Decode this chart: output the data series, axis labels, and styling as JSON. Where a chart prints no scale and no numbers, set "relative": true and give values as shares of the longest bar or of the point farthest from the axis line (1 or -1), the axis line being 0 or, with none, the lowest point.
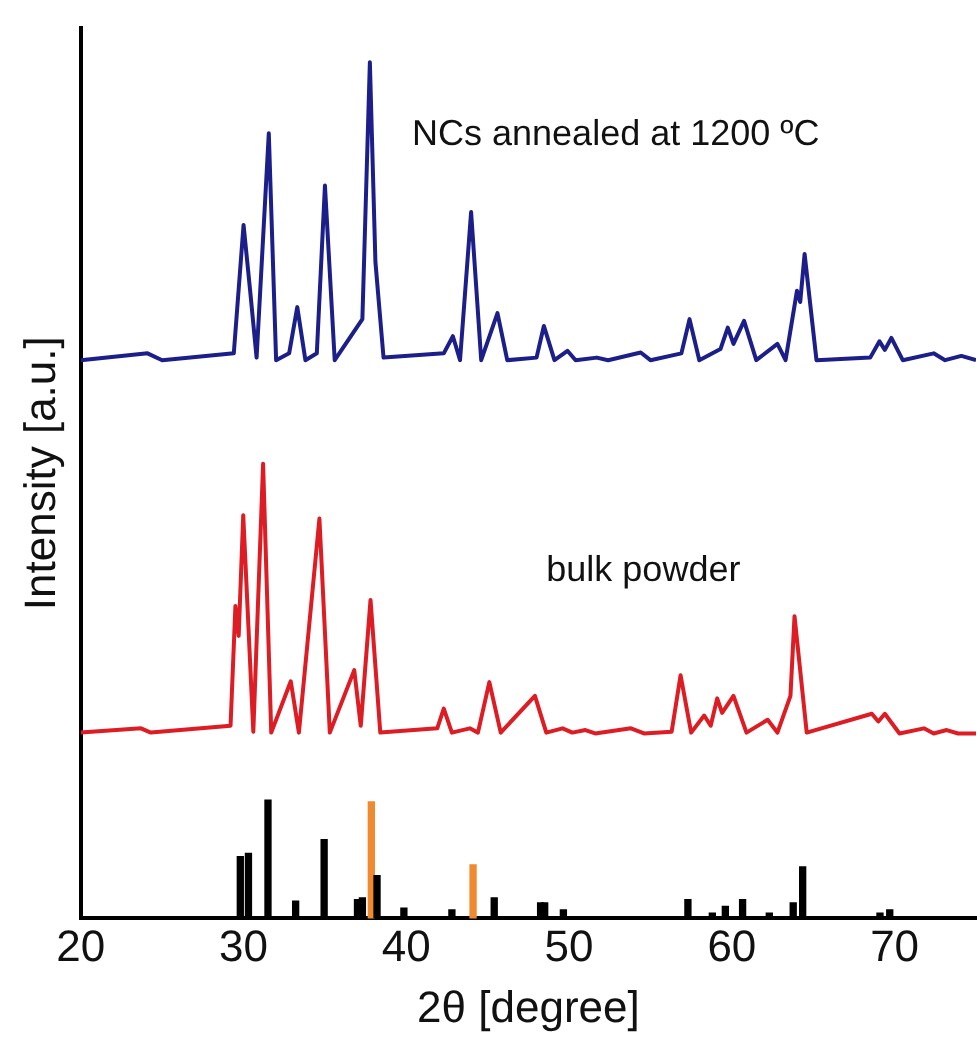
{
  "chart_data": {
    "type": "line",
    "xlabel": "2θ [degree]",
    "ylabel": "Intensity [a.u.]",
    "relative": true,
    "xlim": [
      20,
      75
    ],
    "xticks": [
      20,
      30,
      40,
      50,
      60,
      70
    ],
    "grid": false,
    "legend": false,
    "marker": "none",
    "annotations": [
      "NCs annealed at 1200 ºC",
      "bulk powder"
    ],
    "series": [
      {
        "color": "#1c1f8a",
        "x": [
          20,
          24.1,
          25,
          29.4,
          30,
          30.4,
          30.8,
          31.55,
          32.0,
          32.8,
          33.3,
          33.8,
          34.5,
          35.0,
          35.6,
          37.3,
          37.76,
          38.1,
          38.6,
          42.3,
          42.86,
          43.3,
          43.98,
          44.6,
          45.6,
          46.2,
          48.0,
          48.45,
          49.1,
          49.9,
          50.4,
          51.7,
          52.4,
          54.4,
          55,
          56.9,
          57.4,
          58,
          59.3,
          59.75,
          60.1,
          60.75,
          61.5,
          62.8,
          63.3,
          64.0,
          64.2,
          64.47,
          65.2,
          68.5,
          69.07,
          69.4,
          69.8,
          70.5,
          72.4,
          73.1,
          74.1,
          75
        ],
        "values": [
          0.652,
          0.66,
          0.652,
          0.66,
          0.81,
          0.734,
          0.655,
          0.917,
          0.652,
          0.66,
          0.714,
          0.652,
          0.66,
          0.856,
          0.652,
          0.7,
          1.0,
          0.767,
          0.655,
          0.66,
          0.68,
          0.652,
          0.825,
          0.652,
          0.707,
          0.652,
          0.655,
          0.692,
          0.652,
          0.663,
          0.652,
          0.655,
          0.652,
          0.661,
          0.652,
          0.66,
          0.7,
          0.652,
          0.665,
          0.69,
          0.671,
          0.698,
          0.652,
          0.671,
          0.652,
          0.733,
          0.72,
          0.776,
          0.652,
          0.655,
          0.674,
          0.664,
          0.678,
          0.652,
          0.66,
          0.652,
          0.657,
          0.652
        ]
      },
      {
        "color": "#dd1c24",
        "x": [
          20,
          23.7,
          24.3,
          29.2,
          29.5,
          29.7,
          29.98,
          30.6,
          31.2,
          31.7,
          32.9,
          33.4,
          34.66,
          35.3,
          36.8,
          37.2,
          37.8,
          38.4,
          41.9,
          42.3,
          42.8,
          43.9,
          44.4,
          45.1,
          45.8,
          47.9,
          48.6,
          49.6,
          50.2,
          51.0,
          51.6,
          53.8,
          54.6,
          56.3,
          56.85,
          57.5,
          58.3,
          58.7,
          59.1,
          59.4,
          60.1,
          60.9,
          62.2,
          62.8,
          63.6,
          63.85,
          64.6,
          68.6,
          69.0,
          69.4,
          70.3,
          71.8,
          72.4,
          73.2,
          73.9,
          75
        ],
        "values": [
          0.217,
          0.222,
          0.217,
          0.225,
          0.365,
          0.33,
          0.471,
          0.218,
          0.531,
          0.217,
          0.277,
          0.217,
          0.467,
          0.217,
          0.29,
          0.225,
          0.372,
          0.217,
          0.222,
          0.245,
          0.217,
          0.222,
          0.217,
          0.276,
          0.217,
          0.26,
          0.217,
          0.222,
          0.217,
          0.22,
          0.216,
          0.222,
          0.216,
          0.218,
          0.284,
          0.217,
          0.237,
          0.225,
          0.257,
          0.24,
          0.26,
          0.217,
          0.232,
          0.217,
          0.26,
          0.353,
          0.217,
          0.239,
          0.23,
          0.239,
          0.216,
          0.222,
          0.216,
          0.22,
          0.216,
          0.216
        ]
      },
      {
        "type": "bar",
        "color": "#000000",
        "x": [
          29.8,
          30.3,
          31.5,
          33.2,
          34.95,
          37.0,
          37.3,
          38.2,
          39.85,
          42.8,
          45.4,
          48.25,
          48.5,
          49.65,
          57.3,
          58.8,
          59.6,
          60.66,
          62.3,
          63.77,
          64.35,
          69.1,
          69.7
        ],
        "values": [
          0.072,
          0.076,
          0.138,
          0.02,
          0.092,
          0.022,
          0.024,
          0.05,
          0.012,
          0.01,
          0.024,
          0.018,
          0.018,
          0.01,
          0.022,
          0.006,
          0.014,
          0.022,
          0.006,
          0.018,
          0.06,
          0.006,
          0.01
        ]
      },
      {
        "type": "bar",
        "color": "#f08a30",
        "x": [
          37.85,
          44.1
        ],
        "values": [
          0.136,
          0.0625
        ]
      }
    ]
  }
}
